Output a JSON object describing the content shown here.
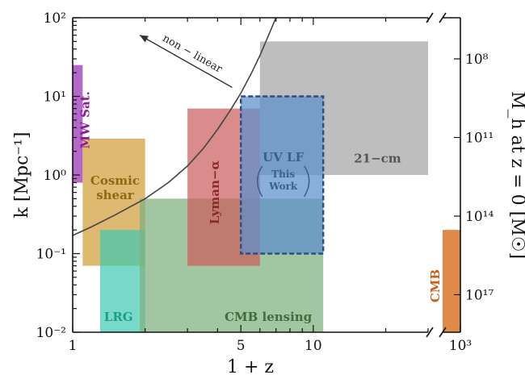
{
  "chart_data": {
    "type": "area",
    "title": "",
    "xlabel": "1 + z",
    "ylabel": "k [Mpc⁻¹]",
    "y2label": "M_h at z = 0 [M☉]",
    "xscale": "log",
    "yscale": "log",
    "xlim": [
      1,
      30
    ],
    "ylim": [
      0.01,
      100
    ],
    "x_break_value": 1000,
    "x_ticks": [
      {
        "value": 1,
        "label": "1"
      },
      {
        "value": 5,
        "label": "5"
      },
      {
        "value": 10,
        "label": "10"
      }
    ],
    "x_break_tick": {
      "value": 1000,
      "label": "10³"
    },
    "y_ticks": [
      {
        "value": 0.01,
        "label": "10⁻²"
      },
      {
        "value": 0.1,
        "label": "10⁻¹"
      },
      {
        "value": 1,
        "label": "10⁰"
      },
      {
        "value": 10,
        "label": "10¹"
      },
      {
        "value": 100,
        "label": "10²"
      }
    ],
    "y2_ticks": [
      {
        "k": 30,
        "label": "10⁸"
      },
      {
        "k": 3,
        "label": "10¹¹"
      },
      {
        "k": 0.3,
        "label": "10¹⁴"
      },
      {
        "k": 0.03,
        "label": "10¹⁷"
      }
    ],
    "regions": [
      {
        "name": "MW Sat.",
        "x": [
          1.0,
          1.1
        ],
        "y": [
          0.8,
          25
        ],
        "color": "#a64fbf",
        "alpha": 0.85,
        "text_color": "#8b1c9c",
        "label_lines": [
          "MW Sat."
        ],
        "label_at": [
          1.17,
          5
        ],
        "rotate": -90
      },
      {
        "name": "Cosmic shear",
        "x": [
          1.1,
          2.0
        ],
        "y": [
          0.07,
          2.9
        ],
        "color": "#d4a84f",
        "alpha": 0.8,
        "text_color": "#8a6a12",
        "label_lines": [
          "Cosmic",
          "shear"
        ],
        "label_at": [
          1.5,
          0.75
        ]
      },
      {
        "name": "LRG",
        "x": [
          1.3,
          2.0
        ],
        "y": [
          0.01,
          0.2
        ],
        "color": "#3fc9b2",
        "alpha": 0.7,
        "text_color": "#1a9e8a",
        "label_lines": [
          "LRG"
        ],
        "label_at": [
          1.55,
          0.014
        ]
      },
      {
        "name": "CMB lensing",
        "x": [
          1.9,
          11
        ],
        "y": [
          0.01,
          0.5
        ],
        "color": "#7eaf7e",
        "alpha": 0.72,
        "text_color": "#3e6e3e",
        "label_lines": [
          "CMB lensing"
        ],
        "label_at": [
          6.5,
          0.014
        ]
      },
      {
        "name": "Lyman-α",
        "x": [
          3.0,
          6.0
        ],
        "y": [
          0.07,
          7
        ],
        "color": "#cc5e5e",
        "alpha": 0.72,
        "text_color": "#8a2a2a",
        "label_lines": [
          "Lyman−α"
        ],
        "label_at": [
          4.05,
          0.6
        ],
        "rotate": -90
      },
      {
        "name": "21-cm",
        "x": [
          6.0,
          30
        ],
        "y": [
          1.0,
          50
        ],
        "color": "#a8a8a8",
        "alpha": 0.75,
        "text_color": "#555555",
        "label_lines": [
          "21−cm"
        ],
        "label_at": [
          18.5,
          1.45
        ]
      },
      {
        "name": "UV LF (This Work)",
        "x": [
          5.0,
          11
        ],
        "y": [
          0.1,
          10
        ],
        "color": "#5b8fcc",
        "alpha": 0.72,
        "text_color": "#3a5f8f",
        "label_lines": [
          "UV LF"
        ],
        "label_at": [
          7.5,
          1.5
        ],
        "dashed": true
      }
    ],
    "uvlf_sublabel": [
      "This",
      "Work"
    ],
    "cmb_bar": {
      "name": "CMB",
      "y": [
        0.01,
        0.2
      ],
      "color": "#e08a4a",
      "text_color": "#c8621a",
      "label": "CMB"
    },
    "nonlinear_curve": {
      "x": [
        1,
        1.2,
        1.5,
        2,
        2.5,
        3,
        3.5,
        4,
        4.5,
        5,
        5.5,
        6,
        7
      ],
      "k": [
        0.17,
        0.22,
        0.31,
        0.5,
        0.8,
        1.3,
        2.2,
        3.8,
        6.5,
        11,
        19,
        33,
        100
      ]
    },
    "annotations": [
      {
        "text": "non − linear",
        "from": [
          4.6,
          13
        ],
        "to": [
          1.9,
          60
        ]
      }
    ]
  }
}
